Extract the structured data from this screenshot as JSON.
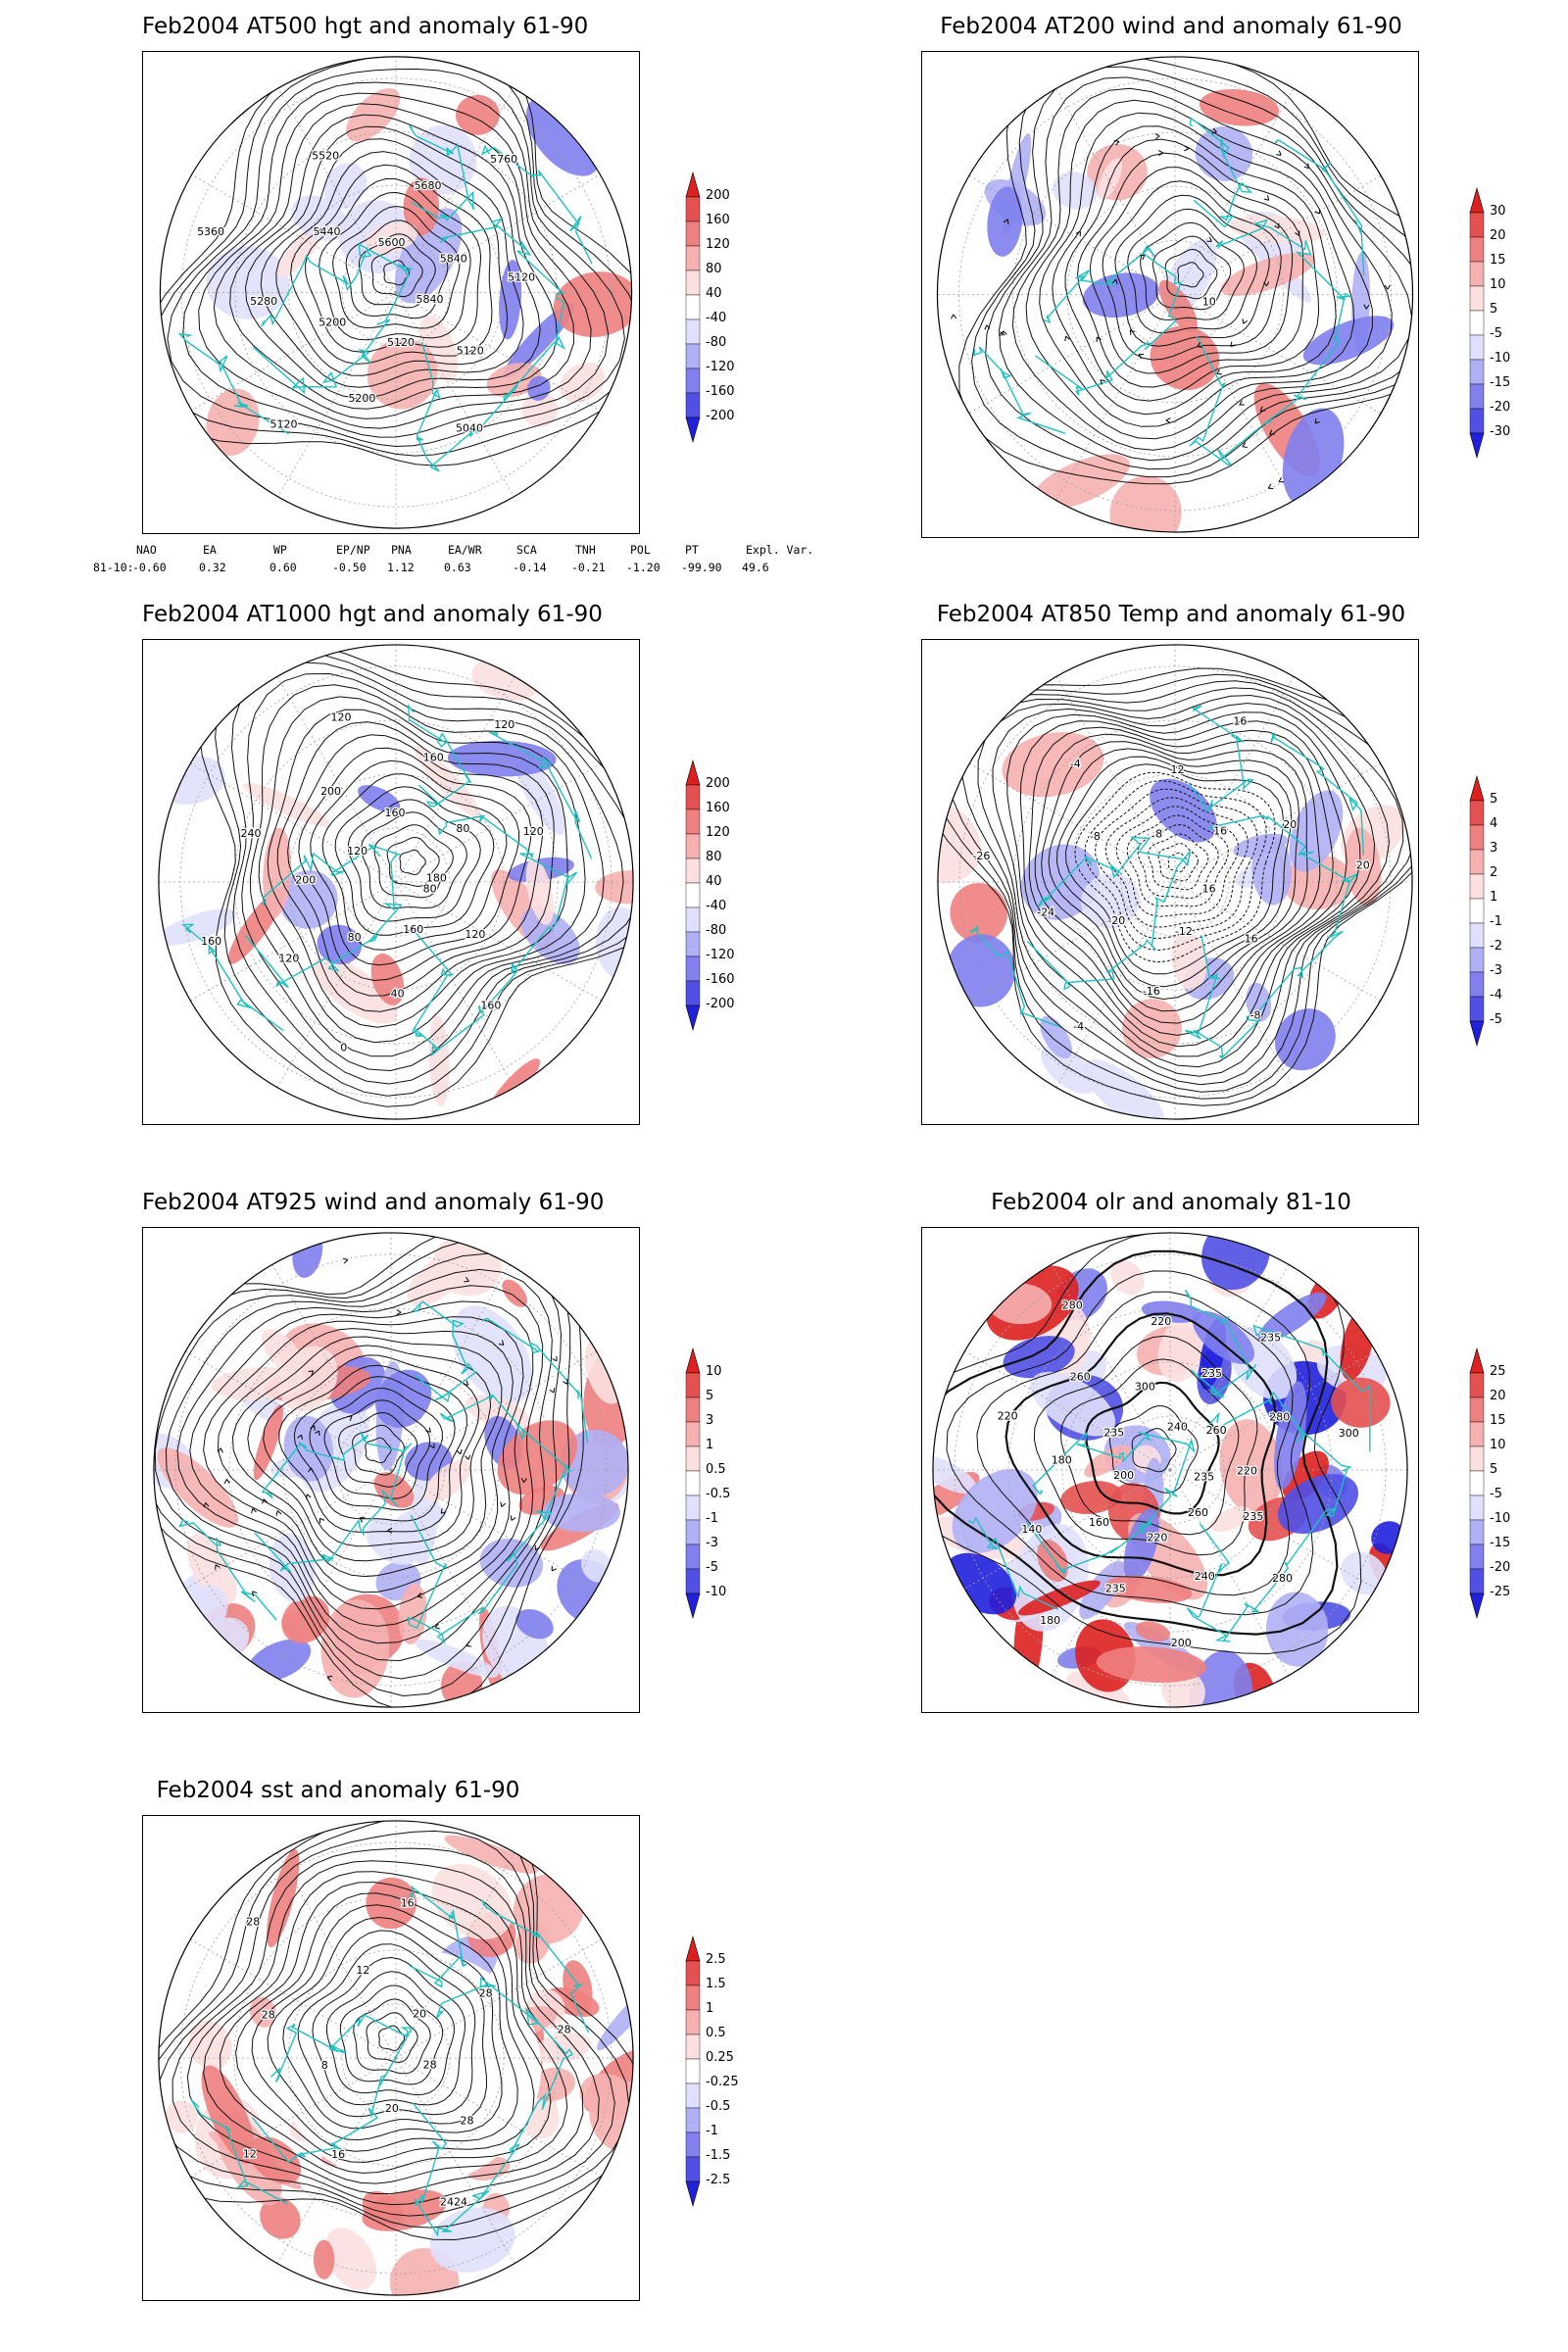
{
  "panels": [
    {
      "title": "Feb2004 AT500 hgt and anomaly 61-90",
      "contour_labels": [
        "5840",
        "5120",
        "5040",
        "5120",
        "5200",
        "5120",
        "5200",
        "5280",
        "5360",
        "5440",
        "5520",
        "5600",
        "5680",
        "5760",
        "5840",
        "5120"
      ],
      "colorbar": [
        "200",
        "160",
        "120",
        "80",
        "40",
        "-40",
        "-80",
        "-120",
        "-160",
        "-200"
      ]
    },
    {
      "title": "Feb2004 AT200 wind and anomaly 61-90",
      "contour_labels": [
        "10"
      ],
      "colorbar": [
        "30",
        "20",
        "15",
        "10",
        "5",
        "-5",
        "-10",
        "-15",
        "-20",
        "-30"
      ]
    },
    {
      "title": "Feb2004 AT1000 hgt and anomaly 61-90",
      "contour_labels": [
        "80",
        "120",
        "160",
        "160",
        "40",
        "0",
        "80",
        "120",
        "160",
        "200",
        "240",
        "120",
        "200",
        "120",
        "160",
        "160",
        "120",
        "80",
        "120",
        "180"
      ],
      "colorbar": [
        "200",
        "160",
        "120",
        "80",
        "40",
        "-40",
        "-80",
        "-120",
        "-160",
        "-200"
      ]
    },
    {
      "title": "Feb2004 AT850 Temp and anomaly 61-90",
      "contour_labels": [
        "16",
        "16",
        "-8",
        "-12",
        "-16",
        "-4",
        "-20",
        "-24",
        "-26",
        "-8",
        "-4",
        "8",
        "12",
        "16",
        "16",
        "20",
        "20"
      ],
      "colorbar": [
        "5",
        "4",
        "3",
        "2",
        "1",
        "-1",
        "-2",
        "-3",
        "-4",
        "-5"
      ]
    },
    {
      "title": "Feb2004 AT925 wind and anomaly 61-90",
      "contour_labels": [],
      "colorbar": [
        "10",
        "5",
        "3",
        "1",
        "0.5",
        "-0.5",
        "-1",
        "-3",
        "-5",
        "-10"
      ]
    },
    {
      "title": "Feb2004 olr and anomaly 81-10",
      "contour_labels": [
        "235",
        "235",
        "280",
        "260",
        "240",
        "200",
        "220",
        "235",
        "180",
        "160",
        "140",
        "200",
        "180",
        "220",
        "235",
        "260",
        "280",
        "300",
        "220",
        "240",
        "235",
        "235",
        "260",
        "280",
        "300",
        "220"
      ],
      "colorbar": [
        "25",
        "20",
        "15",
        "10",
        "5",
        "-5",
        "-10",
        "-15",
        "-20",
        "-25"
      ]
    },
    {
      "title": "Feb2004 sst and anomaly 61-90",
      "contour_labels": [
        "28",
        "28",
        "2424",
        "20",
        "16",
        "12",
        "8",
        "28",
        "28",
        "12",
        "16",
        "20",
        "28",
        "28"
      ],
      "colorbar": [
        "2.5",
        "1.5",
        "1",
        "0.5",
        "0.25",
        "-0.25",
        "-0.5",
        "-1",
        "-1.5",
        "-2.5"
      ]
    }
  ],
  "teleconnection": {
    "headers": [
      "NAO",
      "EA",
      "WP",
      "EP/NP",
      "PNA",
      "EA/WR",
      "SCA",
      "TNH",
      "POL",
      "PT",
      "Expl. Var."
    ],
    "row_label": "81-10:",
    "values": [
      "-0.60",
      "0.32",
      "0.60",
      "-0.50",
      "1.12",
      "0.63",
      "-0.14",
      "-0.21",
      "-1.20",
      "-99.90",
      "49.6"
    ]
  },
  "colors": {
    "coast": "#1fc1c1",
    "pos": [
      "#fce0e0",
      "#f6b0b0",
      "#ee8080",
      "#e55050",
      "#dd2020"
    ],
    "neg": [
      "#e0e0fc",
      "#b0b0f6",
      "#8080ee",
      "#5050e5",
      "#2020dd"
    ],
    "contour": "#111111",
    "grid": "#a0a0a0"
  }
}
